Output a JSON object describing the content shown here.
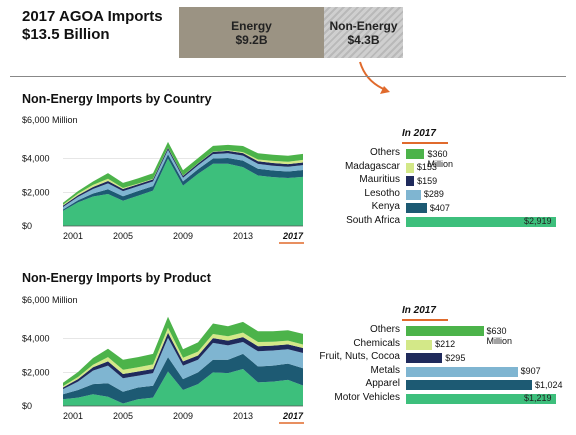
{
  "header": {
    "title_line1": "2017 AGOA Imports",
    "title_line2": "$13.5 Billion",
    "energy_label": "Energy",
    "energy_value": "$9.2B",
    "nonenergy_label": "Non-Energy",
    "nonenergy_value": "$4.3B"
  },
  "colors": {
    "south_africa": "#3dbf7c",
    "kenya": "#1d5a73",
    "lesotho": "#7fb5d1",
    "mauritius": "#1f2a5c",
    "madagascar": "#d3e888",
    "others": "#4cb34a",
    "accent": "#e06a2c"
  },
  "chart_data": [
    {
      "type": "area",
      "title": "Non-Energy Imports by Country",
      "ylabel_top": "$6,000 Million",
      "ylim": [
        0,
        6000
      ],
      "yticks": [
        "$0",
        "$2,000",
        "$4,000"
      ],
      "xticks": [
        "2001",
        "2005",
        "2009",
        "2013",
        "2017"
      ],
      "x": [
        2001,
        2002,
        2003,
        2004,
        2005,
        2006,
        2007,
        2008,
        2009,
        2010,
        2011,
        2012,
        2013,
        2014,
        2015,
        2016,
        2017
      ],
      "series": [
        {
          "name": "South Africa",
          "values": [
            900,
            1400,
            1750,
            1900,
            1500,
            1800,
            2100,
            4000,
            2400,
            3100,
            3700,
            3700,
            3500,
            3000,
            2900,
            2850,
            2919
          ]
        },
        {
          "name": "Kenya",
          "values": [
            80,
            130,
            180,
            280,
            270,
            280,
            270,
            260,
            250,
            270,
            310,
            340,
            380,
            400,
            400,
            390,
            407
          ]
        },
        {
          "name": "Lesotho",
          "values": [
            150,
            200,
            270,
            350,
            300,
            280,
            280,
            260,
            220,
            230,
            260,
            280,
            300,
            290,
            280,
            280,
            289
          ]
        },
        {
          "name": "Mauritius",
          "values": [
            80,
            100,
            120,
            140,
            130,
            120,
            120,
            120,
            110,
            110,
            130,
            140,
            150,
            160,
            160,
            155,
            159
          ]
        },
        {
          "name": "Madagascar",
          "values": [
            50,
            90,
            120,
            140,
            60,
            40,
            30,
            20,
            15,
            20,
            20,
            30,
            60,
            100,
            130,
            145,
            153
          ]
        },
        {
          "name": "Others",
          "values": [
            120,
            150,
            200,
            330,
            300,
            310,
            330,
            340,
            320,
            300,
            340,
            330,
            360,
            370,
            360,
            350,
            360
          ]
        }
      ],
      "bar_panel": {
        "title": "In 2017",
        "items": [
          {
            "label": "Others",
            "value": 360,
            "value_label": "$360 Million"
          },
          {
            "label": "Madagascar",
            "value": 153,
            "value_label": "$153"
          },
          {
            "label": "Mauritius",
            "value": 159,
            "value_label": "$159"
          },
          {
            "label": "Lesotho",
            "value": 289,
            "value_label": "$289"
          },
          {
            "label": "Kenya",
            "value": 407,
            "value_label": "$407"
          },
          {
            "label": "South Africa",
            "value": 2919,
            "value_label": "$2,919"
          }
        ]
      }
    },
    {
      "type": "area",
      "title": "Non-Energy Imports by Product",
      "ylabel_top": "$6,000 Million",
      "ylim": [
        0,
        6000
      ],
      "yticks": [
        "$0",
        "$2,000",
        "$4,000"
      ],
      "xticks": [
        "2001",
        "2005",
        "2009",
        "2013",
        "2017"
      ],
      "x": [
        2001,
        2002,
        2003,
        2004,
        2005,
        2006,
        2007,
        2008,
        2009,
        2010,
        2011,
        2012,
        2013,
        2014,
        2015,
        2016,
        2017
      ],
      "series": [
        {
          "name": "Motor Vehicles",
          "values": [
            400,
            500,
            700,
            550,
            150,
            400,
            500,
            2050,
            950,
            1300,
            2000,
            1950,
            2200,
            1400,
            1450,
            1550,
            1219
          ]
        },
        {
          "name": "Apparel",
          "values": [
            300,
            450,
            600,
            800,
            700,
            700,
            700,
            850,
            650,
            700,
            750,
            800,
            900,
            950,
            950,
            970,
            1024
          ]
        },
        {
          "name": "Metals",
          "values": [
            300,
            500,
            800,
            1050,
            800,
            700,
            750,
            1150,
            800,
            750,
            1000,
            850,
            700,
            900,
            900,
            850,
            907
          ]
        },
        {
          "name": "Fruit, Nuts, Cocoa",
          "values": [
            100,
            150,
            200,
            250,
            250,
            250,
            250,
            300,
            250,
            250,
            280,
            280,
            290,
            300,
            290,
            290,
            295
          ]
        },
        {
          "name": "Chemicals",
          "values": [
            80,
            120,
            150,
            250,
            250,
            250,
            270,
            300,
            220,
            230,
            250,
            260,
            270,
            250,
            230,
            220,
            212
          ]
        },
        {
          "name": "Others",
          "values": [
            200,
            300,
            400,
            500,
            600,
            600,
            630,
            650,
            500,
            550,
            620,
            600,
            640,
            640,
            620,
            620,
            630
          ]
        }
      ],
      "bar_panel": {
        "title": "In 2017",
        "items": [
          {
            "label": "Others",
            "value": 630,
            "value_label": "$630 Million"
          },
          {
            "label": "Chemicals",
            "value": 212,
            "value_label": "$212"
          },
          {
            "label": "Fruit, Nuts, Cocoa",
            "value": 295,
            "value_label": "$295"
          },
          {
            "label": "Metals",
            "value": 907,
            "value_label": "$907"
          },
          {
            "label": "Apparel",
            "value": 1024,
            "value_label": "$1,024"
          },
          {
            "label": "Motor Vehicles",
            "value": 1219,
            "value_label": "$1,219"
          }
        ]
      }
    }
  ]
}
